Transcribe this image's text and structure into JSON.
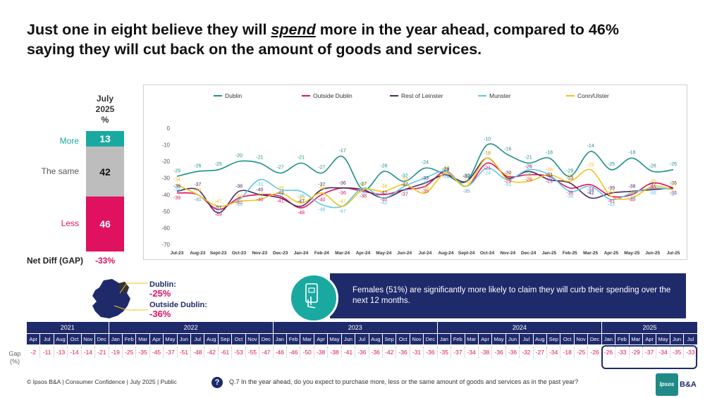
{
  "title_pre": "Just one in eight believe they will ",
  "title_em": "spend",
  "title_post": " more in the year ahead, compared to 46% saying they will cut back on the amount of goods and services.",
  "july_header": [
    "July",
    "2025",
    "%"
  ],
  "stack": [
    {
      "label": "More",
      "value": 13,
      "color": "#19a9a1"
    },
    {
      "label": "The same",
      "value": 42,
      "color": "#bdbdbd"
    },
    {
      "label": "Less",
      "value": 46,
      "color": "#e0115f"
    }
  ],
  "net_diff_label": "Net Diff (GAP)",
  "net_diff_value": "-33%",
  "dublin_label": "Dublin:",
  "dublin_value": "-25%",
  "outside_dublin_label": "Outside Dublin:",
  "outside_dublin_value": "-36%",
  "callout_text": "Females (51%) are significantly more likely to claim they will curb their spending over the next 12 months.",
  "chart_data": {
    "type": "line",
    "categories": [
      "Jul-23",
      "Aug-23",
      "Sept-23",
      "Oct-23",
      "Nov-23",
      "Dec-23",
      "Jan-24",
      "Feb-24",
      "Mar-24",
      "Apr-24",
      "May-24",
      "Jun-24",
      "Jul-24",
      "Aug-24",
      "Sept-24",
      "Oct-24",
      "Nov-24",
      "Dec-24",
      "Jan-25",
      "Feb-25",
      "Mar-25",
      "Apr-25",
      "May-25",
      "Jun-25",
      "Jul-25"
    ],
    "ylim": [
      -70,
      0
    ],
    "yticks": [
      0,
      -10,
      -20,
      -30,
      -40,
      -50,
      -60,
      -70
    ],
    "series": [
      {
        "name": "Dublin",
        "color": "#1e8f89",
        "values": [
          -29,
          -26,
          -25,
          -20,
          -21,
          -27,
          -21,
          -27,
          -17,
          -37,
          -26,
          -32,
          -24,
          -28,
          -32,
          -10,
          -16,
          -21,
          -18,
          -29,
          -14,
          -25,
          -18,
          -26,
          -25
        ]
      },
      {
        "name": "Outside Dublin",
        "color": "#e0115f",
        "values": [
          -39,
          -40,
          -49,
          -42,
          -40,
          -41,
          -48,
          -40,
          -36,
          -38,
          -40,
          -37,
          -35,
          -26,
          -35,
          -21,
          -29,
          -28,
          -29,
          -36,
          -34,
          -41,
          -40,
          -33,
          -36
        ]
      },
      {
        "name": "Rest of Leinster",
        "color": "#4a2a5c",
        "values": [
          -38,
          -37,
          -51,
          -38,
          -40,
          -42,
          -47,
          -37,
          -36,
          -37,
          -42,
          -37,
          -33,
          -28,
          -32,
          -18,
          -30,
          -26,
          -31,
          -33,
          -42,
          -39,
          -38,
          -37,
          -36
        ]
      },
      {
        "name": "Munster",
        "color": "#5fc8e6",
        "values": [
          -34,
          -40,
          -47,
          -43,
          -31,
          -37,
          -38,
          -46,
          -47,
          -36,
          -42,
          -35,
          -30,
          -26,
          -35,
          -24,
          -31,
          -25,
          -28,
          -38,
          -35,
          -43,
          -39,
          -36,
          -37
        ]
      },
      {
        "name": "Conn/Ulster",
        "color": "#f2c31a",
        "values": [
          -34,
          -40,
          -47,
          -44,
          -43,
          -39,
          -45,
          -39,
          -47,
          -37,
          -38,
          -34,
          -39,
          -27,
          -35,
          -18,
          -31,
          -32,
          -28,
          -32,
          -25,
          -41,
          -42,
          -35,
          -37
        ]
      }
    ]
  },
  "timeline": {
    "years": [
      {
        "label": "2021",
        "span": 6
      },
      {
        "label": "2022",
        "span": 12
      },
      {
        "label": "2023",
        "span": 12
      },
      {
        "label": "2024",
        "span": 12
      },
      {
        "label": "2025",
        "span": 7
      }
    ],
    "months": [
      "Apr",
      "Jul",
      "Aug",
      "Oct",
      "Nov",
      "Dec",
      "Jan",
      "Feb",
      "Mar",
      "Apr",
      "May",
      "Jun",
      "Jul",
      "Aug",
      "Sep",
      "Oct",
      "Nov",
      "Dec",
      "Jan",
      "Feb",
      "Mar",
      "Apr",
      "May",
      "Jun",
      "Jul",
      "Aug",
      "Sep",
      "Oct",
      "Nov",
      "Dec",
      "Jan",
      "Feb",
      "Mar",
      "Apr",
      "May",
      "Jun",
      "Jul",
      "Aug",
      "Sep",
      "Oct",
      "Nov",
      "Dec",
      "Jan",
      "Feb",
      "Mar",
      "Apr",
      "May",
      "Jun",
      "Jul"
    ],
    "gap_values": [
      "-2",
      "-11",
      "-13",
      "-14",
      "-14",
      "-21",
      "-19",
      "-25",
      "-35",
      "-45",
      "-37",
      "-51",
      "-48",
      "-42",
      "-61",
      "-53",
      "-55",
      "-47",
      "-46",
      "-46",
      "-50",
      "-38",
      "-38",
      "-41",
      "-36",
      "-36",
      "-42",
      "-36",
      "-31",
      "-36",
      "-35",
      "-37",
      "-34",
      "-38",
      "-36",
      "-36",
      "-32",
      "-27",
      "-34",
      "-18",
      "-25",
      "-26",
      "-26",
      "-33",
      "-29",
      "-37",
      "-34",
      "-35",
      "-33"
    ],
    "gap_label": "Gap (%)"
  },
  "footer": "© Ipsos B&A | Consumer Confidence | July 2025 |  Public",
  "question": "Q.7 In the year ahead, do you expect to purchase more, less or the same amount of goods and services as in the past year?",
  "logo_text": "Ipsos",
  "logo2_text": "B&A"
}
